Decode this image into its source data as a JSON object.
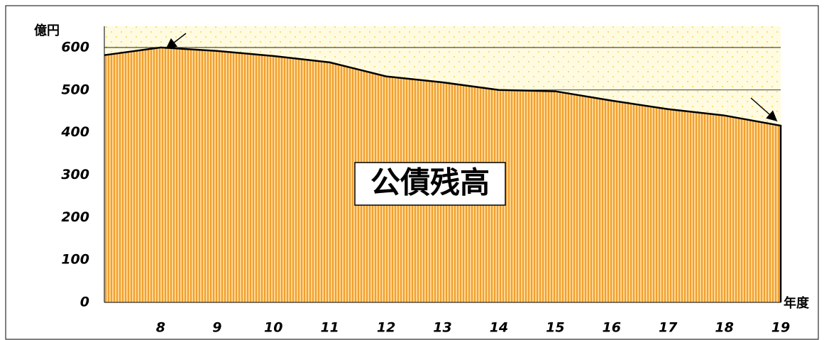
{
  "chart_data": {
    "type": "area",
    "annotation": "公債残高",
    "y_label": "億円",
    "x_label": "年度",
    "categories": [
      null,
      "8",
      "9",
      "10",
      "11",
      "12",
      "13",
      "14",
      "15",
      "16",
      "17",
      "18",
      "19"
    ],
    "values": [
      582,
      600,
      592,
      580,
      565,
      532,
      518,
      500,
      497,
      475,
      455,
      440,
      416
    ],
    "color": "#f0a030",
    "ylim": [
      0,
      650
    ],
    "yticks": [
      0,
      100,
      200,
      300,
      400,
      500,
      600
    ]
  }
}
